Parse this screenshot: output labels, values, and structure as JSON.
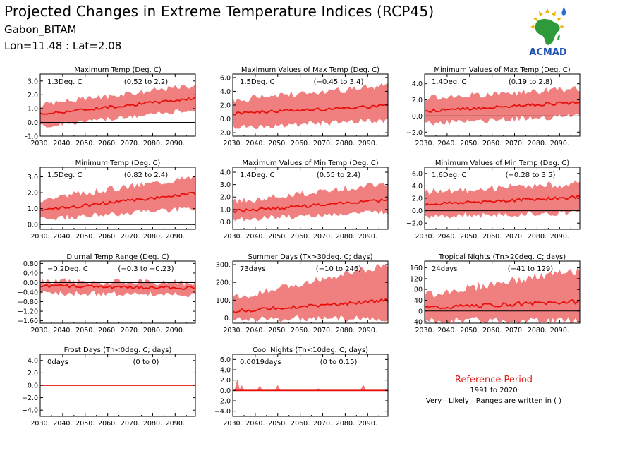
{
  "header": {
    "title": "Projected Changes in Extreme Temperature Indices (RCP45)",
    "location": "Gabon_BITAM",
    "coords": "Lon=11.48 : Lat=2.08"
  },
  "logo": {
    "text": "ACMAD",
    "icon": "africa-map-logo-icon"
  },
  "reference": {
    "title": "Reference Period",
    "years": "1991 to 2020",
    "note": "Very—Likely—Ranges are written in ( )"
  },
  "colors": {
    "band": "#f08080",
    "line": "#e8100c",
    "zero": "#000000",
    "reference": "#e0201b"
  },
  "chart_data": [
    {
      "id": "txmean",
      "type": "area",
      "title": "Maximum Temp (Deg. C)",
      "value_label": "1.3Deg. C",
      "range_label": "(0.52 to 2.2)",
      "x_start": 2030,
      "x_end": 2099,
      "xticks": [
        "2030.",
        "2040.",
        "2050.",
        "2060.",
        "2070.",
        "2080.",
        "2090."
      ],
      "ylim": [
        -1.0,
        3.5
      ],
      "yticks": [
        "-1.0",
        "0.0",
        "1.0",
        "2.0",
        "3.0"
      ],
      "ytick_values": [
        -1,
        0,
        1,
        2,
        3
      ],
      "start": 0.6,
      "end": 1.75,
      "lo_start": -0.3,
      "lo_end": 0.9,
      "hi_start": 1.3,
      "hi_end": 2.7,
      "noise": 0.18
    },
    {
      "id": "txx",
      "type": "area",
      "title": "Maximum Values of Max Temp (Deg. C)",
      "value_label": "1.5Deg. C",
      "range_label": "(−0.45 to 3.4)",
      "x_start": 2030,
      "x_end": 2099,
      "xticks": [
        "2030.",
        "2040.",
        "2050.",
        "2060.",
        "2070.",
        "2080.",
        "2090."
      ],
      "ylim": [
        -2.5,
        6.5
      ],
      "yticks": [
        "−2.0",
        "0.0",
        "2.0",
        "4.0",
        "6.0"
      ],
      "ytick_values": [
        -2,
        0,
        2,
        4,
        6
      ],
      "start": 0.8,
      "end": 1.9,
      "lo_start": -1.2,
      "lo_end": -0.2,
      "hi_start": 2.8,
      "hi_end": 4.8,
      "noise": 0.45
    },
    {
      "id": "txn",
      "type": "area",
      "title": "Minimum Values of Max Temp (Deg. C)",
      "value_label": "1.4Deg. C",
      "range_label": "(0.19 to 2.8)",
      "x_start": 2030,
      "x_end": 2099,
      "xticks": [
        "2030.",
        "2040.",
        "2050.",
        "2060.",
        "2070.",
        "2080.",
        "2090."
      ],
      "ylim": [
        -2.5,
        5.2
      ],
      "yticks": [
        "−2.0",
        "0.0",
        "2.0",
        "4.0"
      ],
      "ytick_values": [
        -2,
        0,
        2,
        4
      ],
      "start": 0.6,
      "end": 1.7,
      "lo_start": -0.9,
      "lo_end": 0.0,
      "hi_start": 2.2,
      "hi_end": 3.4,
      "noise": 0.35
    },
    {
      "id": "tnmean",
      "type": "area",
      "title": "Minimum Temp (Deg. C)",
      "value_label": "1.5Deg. C",
      "range_label": "(0.82 to 2.4)",
      "x_start": 2030,
      "x_end": 2099,
      "xticks": [
        "2030.",
        "2040.",
        "2050.",
        "2060.",
        "2070.",
        "2080.",
        "2090."
      ],
      "ylim": [
        -0.3,
        3.6
      ],
      "yticks": [
        "0.0",
        "1.0",
        "2.0",
        "3.0"
      ],
      "ytick_values": [
        0,
        1,
        2,
        3
      ],
      "start": 0.9,
      "end": 1.95,
      "lo_start": 0.35,
      "lo_end": 1.0,
      "hi_start": 1.6,
      "hi_end": 3.0,
      "noise": 0.18
    },
    {
      "id": "tnx",
      "type": "area",
      "title": "Maximum Values of Min Temp (Deg. C)",
      "value_label": "1.4Deg. C",
      "range_label": "(0.55 to 2.4)",
      "x_start": 2030,
      "x_end": 2099,
      "xticks": [
        "2030.",
        "2040.",
        "2050.",
        "2060.",
        "2070.",
        "2080.",
        "2090."
      ],
      "ylim": [
        -0.6,
        4.4
      ],
      "yticks": [
        "0.0",
        "1.0",
        "2.0",
        "3.0",
        "4.0"
      ],
      "ytick_values": [
        0,
        1,
        2,
        3,
        4
      ],
      "start": 0.85,
      "end": 1.75,
      "lo_start": 0.2,
      "lo_end": 0.8,
      "hi_start": 1.6,
      "hi_end": 3.1,
      "noise": 0.22
    },
    {
      "id": "tnn",
      "type": "area",
      "title": "Minimum Values of Min Temp (Deg. C)",
      "value_label": "1.6Deg. C",
      "range_label": "(−0.28 to 3.5)",
      "x_start": 2030,
      "x_end": 2099,
      "xticks": [
        "2030.",
        "2040.",
        "2050.",
        "2060.",
        "2070.",
        "2080.",
        "2090."
      ],
      "ylim": [
        -3.0,
        7.0
      ],
      "yticks": [
        "−2.0",
        "0.0",
        "2.0",
        "4.0",
        "6.0"
      ],
      "ytick_values": [
        -2,
        0,
        2,
        4,
        6
      ],
      "start": 1.0,
      "end": 2.2,
      "lo_start": -0.9,
      "lo_end": -0.3,
      "hi_start": 3.0,
      "hi_end": 4.4,
      "noise": 0.5
    },
    {
      "id": "dtr",
      "type": "area",
      "title": "Diurnal Temp Range (Deg. C)",
      "value_label": "−0.2Deg. C",
      "range_label": "(−0.3 to −0.23)",
      "x_start": 2030,
      "x_end": 2099,
      "xticks": [
        "2030.",
        "2040.",
        "2050.",
        "2060.",
        "2070.",
        "2080.",
        "2090."
      ],
      "ylim": [
        -1.7,
        0.9
      ],
      "yticks": [
        "−1.60",
        "−1.20",
        "−0.80",
        "−0.40",
        "0.00",
        "0.40",
        "0.80"
      ],
      "ytick_values": [
        -1.6,
        -1.2,
        -0.8,
        -0.4,
        0.0,
        0.4,
        0.8
      ],
      "start": -0.15,
      "end": -0.22,
      "lo_start": -0.45,
      "lo_end": -0.5,
      "hi_start": 0.05,
      "hi_end": 0.0,
      "noise": 0.12
    },
    {
      "id": "su",
      "type": "area",
      "title": "Summer Days (Tx>30deg. C; days)",
      "value_label": "73days",
      "range_label": "(−10 to 246)",
      "x_start": 2030,
      "x_end": 2099,
      "xticks": [
        "2030.",
        "2040.",
        "2050.",
        "2060.",
        "2070.",
        "2080.",
        "2090."
      ],
      "ylim": [
        -30,
        320
      ],
      "yticks": [
        "0.",
        "100.",
        "200.",
        "300."
      ],
      "ytick_values": [
        0,
        100,
        200,
        300
      ],
      "start": 38,
      "end": 98,
      "lo_start": -5,
      "lo_end": -5,
      "hi_start": 110,
      "hi_end": 300,
      "noise": 18
    },
    {
      "id": "tr",
      "type": "area",
      "title": "Tropical Nights (Tn>20deg. C; days)",
      "value_label": "24days",
      "range_label": "(−41 to 129)",
      "x_start": 2030,
      "x_end": 2099,
      "xticks": [
        "2030.",
        "2040.",
        "2050.",
        "2060.",
        "2070.",
        "2080.",
        "2090."
      ],
      "ylim": [
        -45,
        185
      ],
      "yticks": [
        "−40",
        "0",
        "40",
        "80",
        "120",
        "160"
      ],
      "ytick_values": [
        -40,
        0,
        40,
        80,
        120,
        160
      ],
      "start": 12,
      "end": 35,
      "lo_start": -35,
      "lo_end": -35,
      "hi_start": 60,
      "hi_end": 150,
      "noise": 14
    },
    {
      "id": "fd",
      "type": "area",
      "title": "Frost Days (Tn<0deg. C; days)",
      "value_label": "0days",
      "range_label": "(0 to 0)",
      "x_start": 2030,
      "x_end": 2099,
      "xticks": [
        "2030.",
        "2040.",
        "2050.",
        "2060.",
        "2070.",
        "2080.",
        "2090."
      ],
      "ylim": [
        -5.0,
        5.0
      ],
      "yticks": [
        "−4.0",
        "−2.0",
        "0.0",
        "2.0",
        "4.0"
      ],
      "ytick_values": [
        -4,
        -2,
        0,
        2,
        4
      ],
      "start": 0,
      "end": 0,
      "lo_start": 0,
      "lo_end": 0,
      "hi_start": 0,
      "hi_end": 0,
      "noise": 0
    },
    {
      "id": "tn10",
      "type": "area",
      "title": "Cool Nights (Tn<10deg. C; days)",
      "value_label": "0.0019days",
      "range_label": "(0 to 0.15)",
      "x_start": 2030,
      "x_end": 2099,
      "xticks": [
        "2030.",
        "2040.",
        "2050.",
        "2060.",
        "2070.",
        "2080.",
        "2090."
      ],
      "ylim": [
        -5.0,
        7.0
      ],
      "yticks": [
        "−4.0",
        "−2.0",
        "0.0",
        "2.0",
        "4.0",
        "6.0"
      ],
      "ytick_values": [
        -4,
        -2,
        0,
        2,
        4,
        6
      ],
      "start": 0,
      "end": 0,
      "lo_start": 0,
      "lo_end": 0,
      "hi_start": 0,
      "hi_end": 0,
      "noise": 0,
      "spikes": [
        [
          2032,
          2.2
        ],
        [
          2034,
          1.0
        ],
        [
          2042,
          1.0
        ],
        [
          2050,
          1.1
        ],
        [
          2068,
          0.4
        ],
        [
          2088,
          1.2
        ]
      ]
    }
  ]
}
